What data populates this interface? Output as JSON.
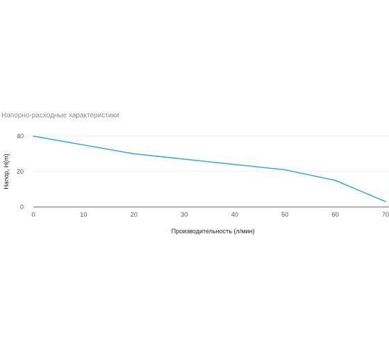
{
  "chart_data": {
    "type": "line",
    "title": "Напорно-расходные характеристики",
    "xlabel": "Производительность (л/мин)",
    "ylabel": "Напор, Н(m)",
    "xlim": [
      0,
      70
    ],
    "ylim": [
      0,
      40
    ],
    "x_ticks": [
      0,
      10,
      20,
      30,
      40,
      50,
      60,
      70
    ],
    "y_ticks": [
      0,
      20,
      40
    ],
    "grid": true,
    "legend": "none",
    "series": [
      {
        "color": "#2eaecf",
        "points": [
          {
            "x": 0,
            "y": 40
          },
          {
            "x": 20,
            "y": 30
          },
          {
            "x": 50,
            "y": 21
          },
          {
            "x": 60,
            "y": 15
          },
          {
            "x": 70,
            "y": 3
          }
        ]
      }
    ]
  }
}
